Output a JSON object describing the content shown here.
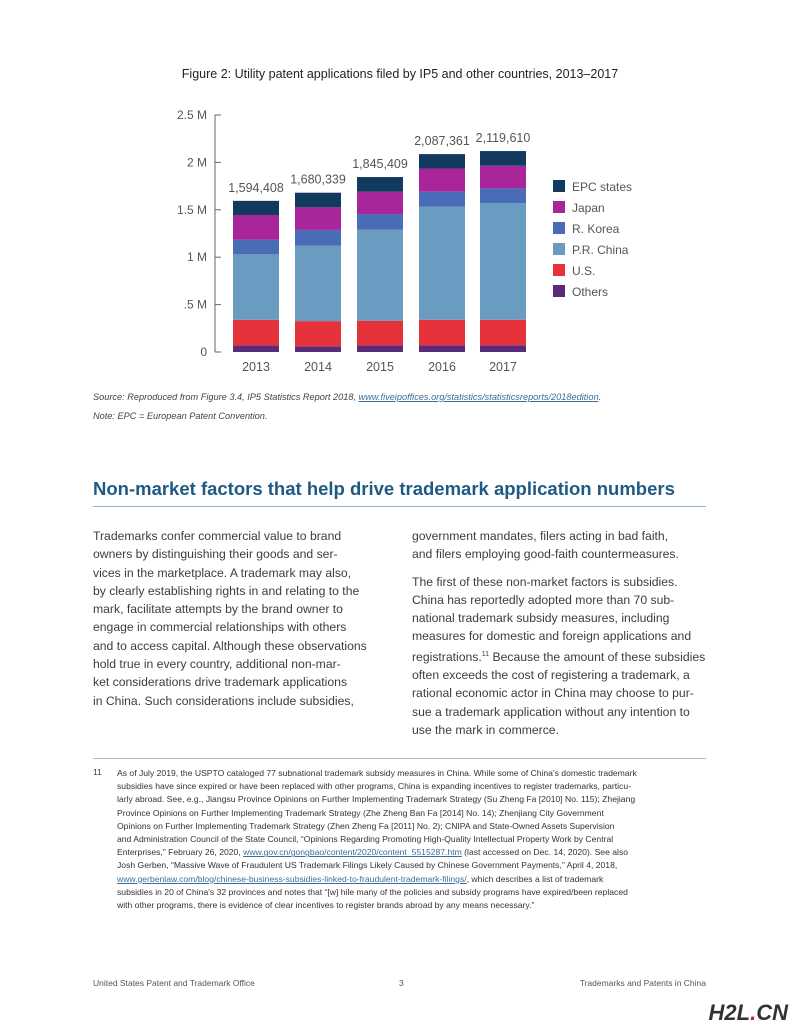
{
  "figure": {
    "title": "Figure 2: Utility patent applications filed by IP5 and other countries, 2013–2017",
    "source_prefix": "Source: Reproduced from Figure 3.4, IP5 Statistics Report 2018, ",
    "source_link": "www.fiveipoffices.org/statistics/statisticsreports/2018edition",
    "source_suffix": ".",
    "note": "Note: EPC = European Patent Convention."
  },
  "chart_data": {
    "type": "bar",
    "stacked": true,
    "title": "Figure 2: Utility patent applications filed by IP5 and other countries, 2013–2017",
    "categories": [
      "2013",
      "2014",
      "2015",
      "2016",
      "2017"
    ],
    "totals": [
      1594408,
      1680339,
      1845409,
      2087361,
      2119610
    ],
    "total_labels": [
      "1,594,408",
      "1,680,339",
      "1,845,409",
      "2,087,361",
      "2,119,610"
    ],
    "ylim": [
      0,
      2500000
    ],
    "yticks": [
      0,
      500000,
      1000000,
      1500000,
      2000000,
      2500000
    ],
    "ytick_labels": [
      "0",
      ".5 M",
      "1 M",
      "1.5 M",
      "2 M",
      "2.5 M"
    ],
    "legend_position": "right",
    "series": [
      {
        "name": "Others",
        "color": "#5b2a78",
        "values": [
          70000,
          60000,
          70000,
          70000,
          70000
        ]
      },
      {
        "name": "U.S.",
        "color": "#e5323b",
        "values": [
          270000,
          266000,
          260000,
          270000,
          270000
        ]
      },
      {
        "name": "P.R. China",
        "color": "#6a9bc0",
        "values": [
          690000,
          797000,
          960000,
          1193000,
          1232000
        ]
      },
      {
        "name": "R. Korea",
        "color": "#4a6bb5",
        "values": [
          155000,
          165000,
          165000,
          158000,
          154000
        ]
      },
      {
        "name": "Japan",
        "color": "#a8259a",
        "values": [
          260000,
          238000,
          235000,
          245000,
          239000
        ]
      },
      {
        "name": "EPC states",
        "color": "#123a5e",
        "values": [
          149408,
          154339,
          155409,
          151361,
          154610
        ]
      }
    ]
  },
  "section": {
    "heading": "Non-market factors that help drive trademark application numbers",
    "col1": [
      "Trademarks confer commercial value to brand",
      "owners by distinguishing their goods and ser-",
      "vices in the marketplace. A trademark may also,",
      "by clearly establishing rights in and relating to the",
      "mark, facilitate attempts by the brand owner to",
      "engage in commercial relationships with others",
      "and to access capital. Although these observations",
      "hold true in every country, additional non-mar-",
      "ket considerations drive trademark applications",
      "in China. Such considerations include subsidies,"
    ],
    "col2a": [
      "government mandates, filers acting in bad faith,",
      "and filers employing good-faith countermeasures."
    ],
    "col2b": [
      "The first of these non-market factors is subsidies.",
      "China has reportedly adopted more than 70 sub-",
      "national trademark subsidy measures, including",
      "measures for domestic and foreign applications and"
    ],
    "col2b_reg": "registrations.",
    "col2b_sup": "11",
    "col2b_reg_rest": " Because the amount of these subsidies",
    "col2c": [
      "often exceeds the cost of registering a trademark, a",
      "rational economic actor in China may choose to pur-",
      "sue a trademark application without any intention to",
      "use the mark in commerce."
    ]
  },
  "footnote": {
    "number": "11",
    "lines": [
      [
        {
          "t": "As of July 2019, the USPTO cataloged 77 subnational trademark subsidy measures in China. While some of China's domestic trademark"
        }
      ],
      [
        {
          "t": "subsidies have since expired or have been replaced with other programs, China is expanding incentives to register trademarks, particu-"
        }
      ],
      [
        {
          "t": "larly abroad. See, e.g., Jiangsu Province Opinions on Further Implementing Trademark Strategy (Su Zheng Fa [2010] No. 115); Zhejiang"
        }
      ],
      [
        {
          "t": "Province Opinions on Further Implementing Trademark Strategy (Zhe Zheng Ban Fa [2014] No. 14); Zhenjiang City Government"
        }
      ],
      [
        {
          "t": "Opinions on Further Implementing Trademark Strategy (Zhen Zheng Fa [2011] No. 2); CNIPA and State-Owned Assets Supervision"
        }
      ],
      [
        {
          "t": "and Administration Council of the State Council, “Opinions Regarding Promoting High-Quality Intellectual Property Work by Central"
        }
      ],
      [
        {
          "t": "Enterprises,” February 26, 2020, "
        },
        {
          "t": "www.gov.cn/gongbao/content/2020/content_5515287.htm",
          "link": true
        },
        {
          "t": " (last accessed on Dec. 14, 2020). See also"
        }
      ],
      [
        {
          "t": "Josh Gerben, “Massive Wave of Fraudulent US Trademark Filings Likely Caused by Chinese Government Payments,” April 4, 2018,"
        }
      ],
      [
        {
          "t": "www.gerbenlaw.com/blog/chinese-business-subsidies-linked-to-fraudulent-trademark-filings/",
          "link": true
        },
        {
          "t": ", which describes a list of trademark"
        }
      ],
      [
        {
          "t": "subsidies in 20 of China's 32 provinces and notes that “[w] hile many of the policies and subsidy programs have expired/been replaced"
        }
      ],
      [
        {
          "t": "with other programs, there is evidence of clear incentives to register brands abroad by any means necessary.”"
        }
      ]
    ]
  },
  "footer": {
    "left": "United States Patent and Trademark Office",
    "page": "3",
    "right": "Trademarks and Patents in China"
  },
  "watermark": {
    "main": "H2L",
    "dot": ".",
    "tld": "CN"
  }
}
